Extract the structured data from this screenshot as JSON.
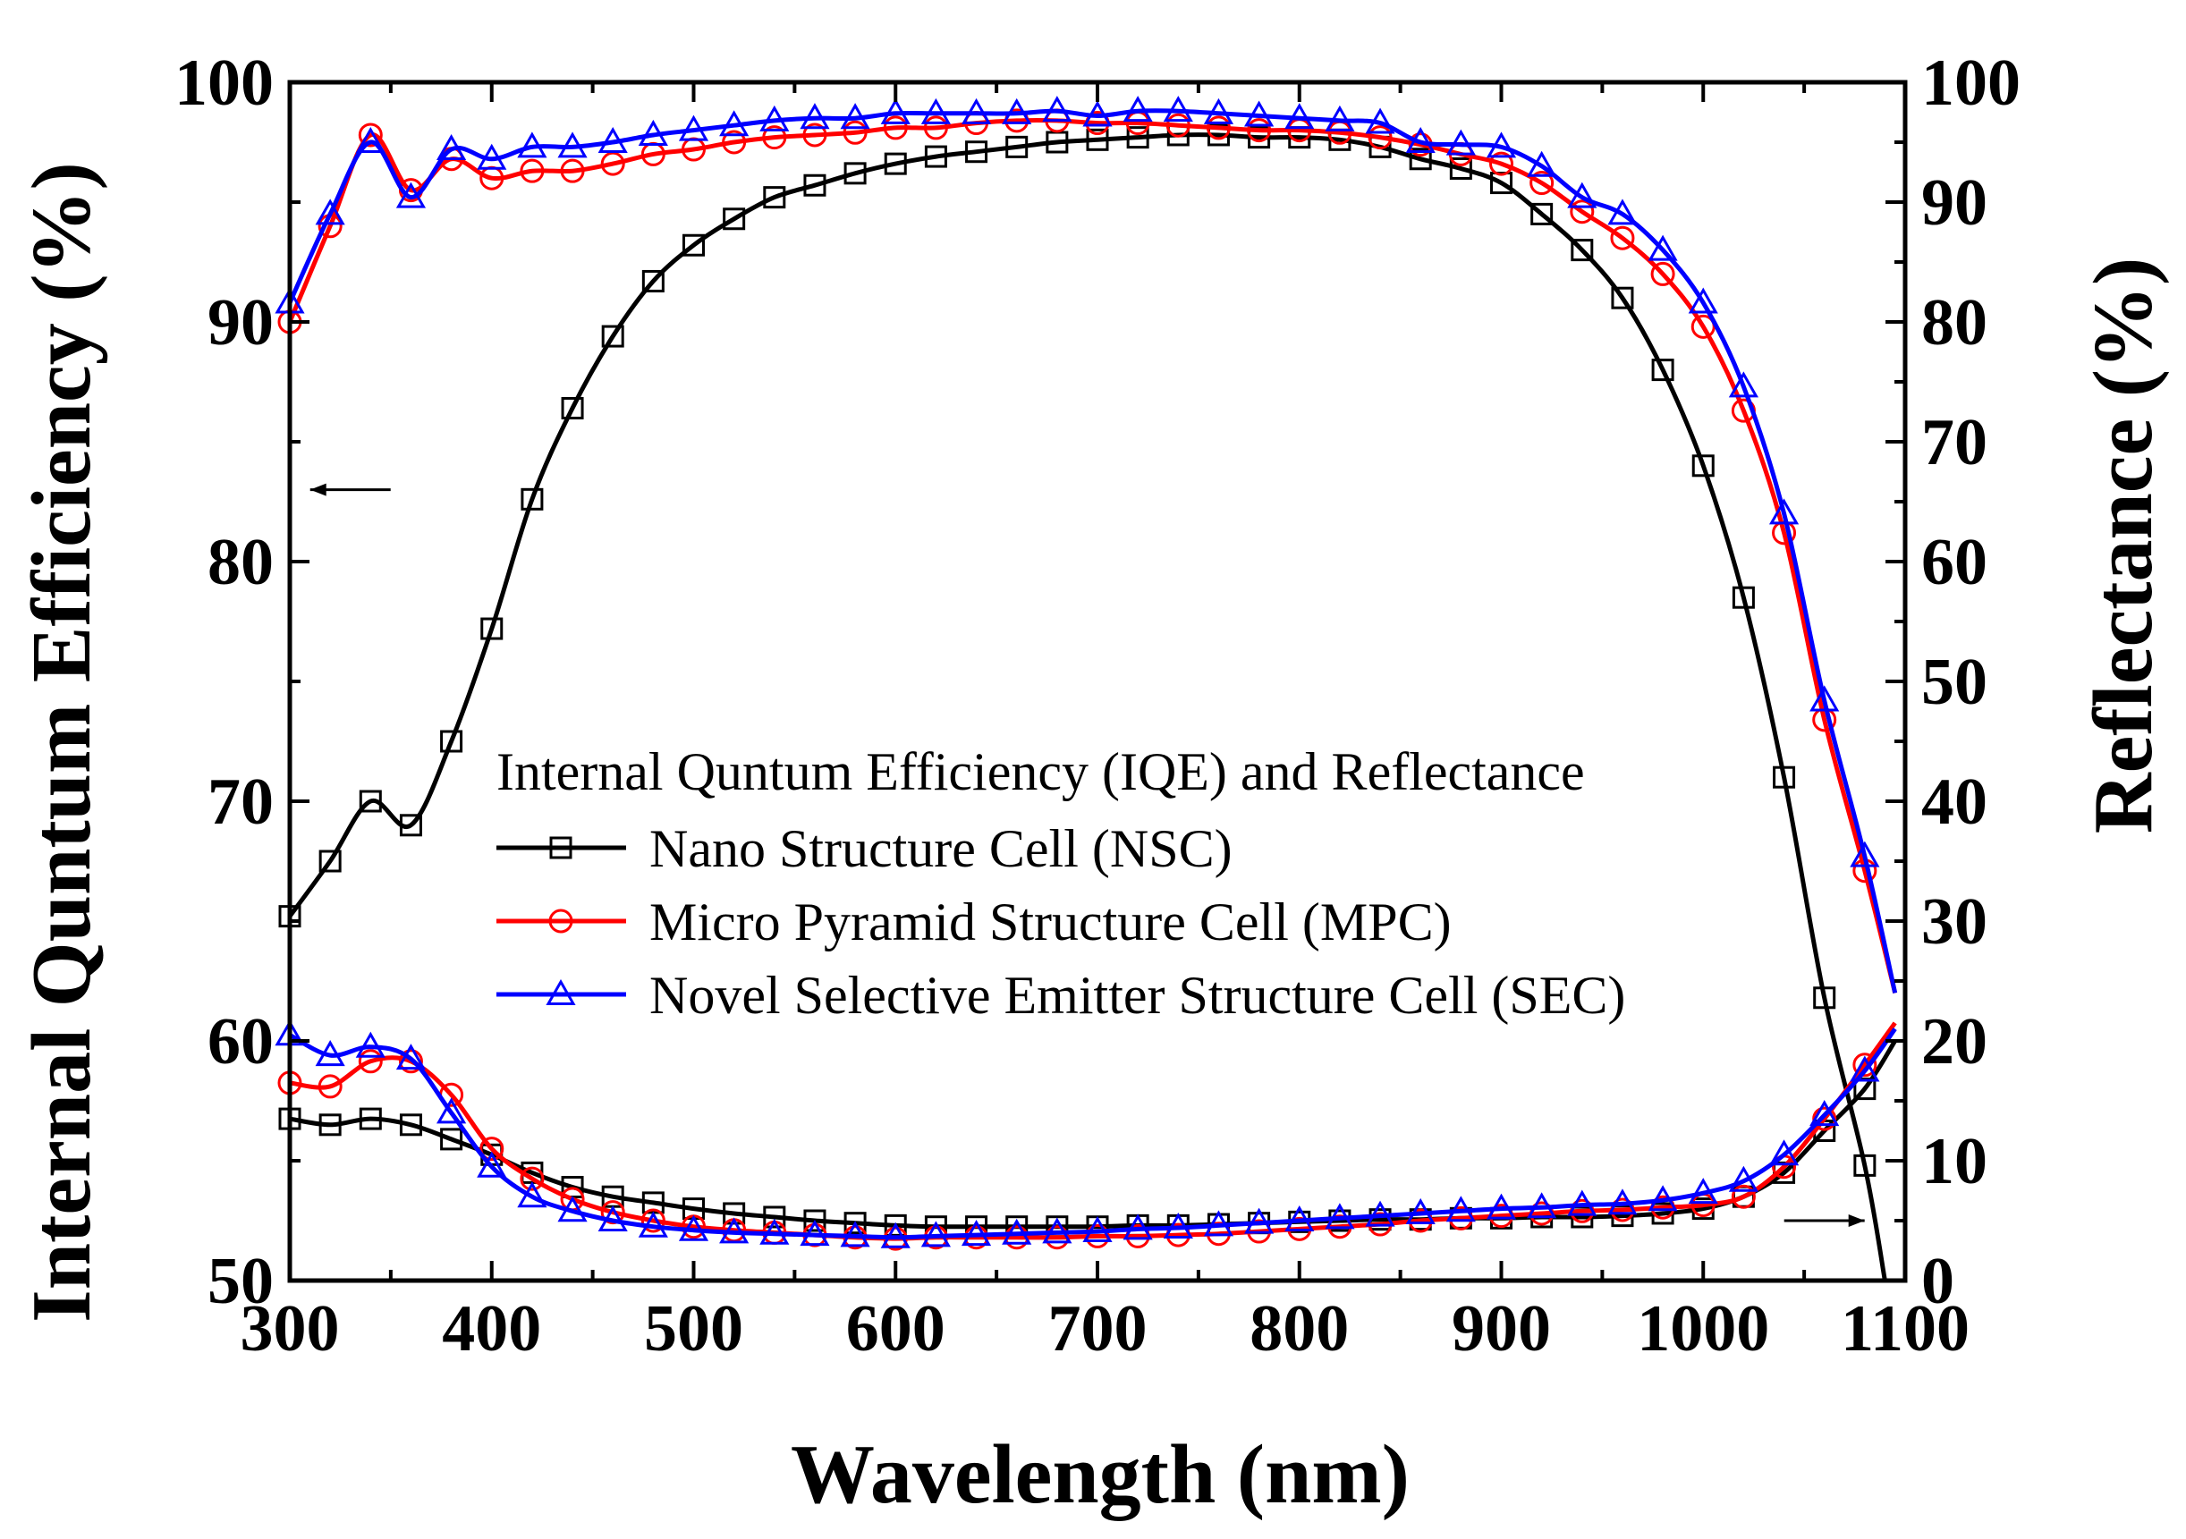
{
  "chart_data": {
    "type": "line",
    "title": "Internal Quntum Efficiency (IQE) and Reflectance",
    "xlabel": "Wavelength (nm)",
    "ylabel_left": "Internal Quntum Efficiency (%)",
    "ylabel_right": "Reflectance (%)",
    "xlim": [
      300,
      1100
    ],
    "ylim_left": [
      50,
      100
    ],
    "ylim_right": [
      0,
      100
    ],
    "x_ticks": [
      300,
      400,
      500,
      600,
      700,
      800,
      900,
      1000,
      1100
    ],
    "y_ticks_left": [
      50,
      60,
      70,
      80,
      90,
      100
    ],
    "y_ticks_right": [
      0,
      10,
      20,
      30,
      40,
      50,
      60,
      70,
      80,
      90,
      100
    ],
    "x_tick_labels": [
      "300",
      "400",
      "500",
      "600",
      "700",
      "800",
      "900",
      "1000",
      "1100"
    ],
    "y_tick_labels_left": [
      "50",
      "60",
      "70",
      "80",
      "90",
      "100"
    ],
    "y_tick_labels_right": [
      "0",
      "10",
      "20",
      "30",
      "40",
      "50",
      "60",
      "70",
      "80",
      "90",
      "100"
    ],
    "grid": false,
    "legend_position": "center",
    "annotations": [
      {
        "type": "arrow",
        "direction": "left",
        "axis": "IQE",
        "x": 330,
        "y": 83
      },
      {
        "type": "arrow",
        "direction": "right",
        "axis": "Reflectance",
        "x": 1060,
        "y": 5
      }
    ],
    "series": [
      {
        "name": "Nano Structure Cell (NSC)",
        "color": "#000000",
        "marker": "square",
        "axis": "IQE",
        "x": [
          300,
          320,
          340,
          360,
          380,
          400,
          420,
          440,
          460,
          480,
          500,
          520,
          540,
          560,
          580,
          600,
          620,
          640,
          660,
          680,
          700,
          720,
          740,
          760,
          780,
          800,
          820,
          840,
          860,
          880,
          900,
          920,
          940,
          960,
          980,
          1000,
          1020,
          1040,
          1060,
          1080,
          1090
        ],
        "values": [
          65.2,
          67.5,
          70.0,
          69.0,
          72.5,
          77.2,
          82.6,
          86.4,
          89.4,
          91.7,
          93.2,
          94.3,
          95.2,
          95.7,
          96.2,
          96.6,
          96.9,
          97.1,
          97.3,
          97.5,
          97.6,
          97.7,
          97.8,
          97.8,
          97.7,
          97.7,
          97.6,
          97.3,
          96.8,
          96.4,
          95.8,
          94.5,
          93.0,
          91.0,
          88.0,
          84.0,
          78.5,
          71.0,
          61.8,
          54.8,
          50.0
        ]
      },
      {
        "name": "Micro Pyramid Structure Cell (MPC)",
        "color": "#ff0000",
        "marker": "circle",
        "axis": "IQE",
        "x": [
          300,
          320,
          340,
          360,
          380,
          400,
          420,
          440,
          460,
          480,
          500,
          520,
          540,
          560,
          580,
          600,
          620,
          640,
          660,
          680,
          700,
          720,
          740,
          760,
          780,
          800,
          820,
          840,
          860,
          880,
          900,
          920,
          940,
          960,
          980,
          1000,
          1020,
          1040,
          1060,
          1080,
          1095
        ],
        "values": [
          90.0,
          94.0,
          97.8,
          95.5,
          96.8,
          96.0,
          96.3,
          96.3,
          96.6,
          97.0,
          97.2,
          97.5,
          97.7,
          97.8,
          97.9,
          98.1,
          98.1,
          98.3,
          98.4,
          98.4,
          98.3,
          98.3,
          98.2,
          98.1,
          98.0,
          98.0,
          97.9,
          97.7,
          97.4,
          97.0,
          96.6,
          95.8,
          94.6,
          93.5,
          92.0,
          89.8,
          86.3,
          81.2,
          73.4,
          67.1,
          62.0
        ]
      },
      {
        "name": "Novel Selective Emitter Structure Cell (SEC)",
        "color": "#0000ff",
        "marker": "triangle",
        "axis": "IQE",
        "x": [
          300,
          320,
          340,
          360,
          380,
          400,
          420,
          440,
          460,
          480,
          500,
          520,
          540,
          560,
          580,
          600,
          620,
          640,
          660,
          680,
          700,
          720,
          740,
          760,
          780,
          800,
          820,
          840,
          860,
          880,
          900,
          920,
          940,
          960,
          980,
          1000,
          1020,
          1040,
          1060,
          1080,
          1095
        ],
        "values": [
          90.8,
          94.5,
          97.5,
          95.2,
          97.2,
          96.8,
          97.3,
          97.3,
          97.5,
          97.8,
          98.0,
          98.2,
          98.4,
          98.5,
          98.5,
          98.7,
          98.7,
          98.7,
          98.7,
          98.8,
          98.6,
          98.8,
          98.8,
          98.7,
          98.6,
          98.5,
          98.4,
          98.3,
          97.5,
          97.4,
          97.3,
          96.5,
          95.2,
          94.5,
          93.0,
          90.8,
          87.3,
          82.0,
          74.2,
          67.7,
          62.0
        ]
      },
      {
        "name": "Nano Structure Cell (NSC)",
        "color": "#000000",
        "marker": "square",
        "axis": "Reflectance",
        "x": [
          300,
          320,
          340,
          360,
          380,
          400,
          420,
          440,
          460,
          480,
          500,
          520,
          540,
          560,
          580,
          600,
          620,
          640,
          660,
          680,
          700,
          720,
          740,
          760,
          780,
          800,
          820,
          840,
          860,
          880,
          900,
          920,
          940,
          960,
          980,
          1000,
          1020,
          1040,
          1060,
          1080,
          1095
        ],
        "values": [
          13.5,
          13.0,
          13.5,
          13.0,
          11.8,
          10.5,
          9.0,
          7.8,
          7.0,
          6.5,
          6.0,
          5.6,
          5.3,
          5.0,
          4.8,
          4.6,
          4.5,
          4.5,
          4.5,
          4.5,
          4.5,
          4.6,
          4.6,
          4.7,
          4.8,
          4.9,
          5.0,
          5.1,
          5.1,
          5.2,
          5.2,
          5.3,
          5.3,
          5.4,
          5.6,
          6.0,
          7.0,
          9.0,
          12.5,
          16.0,
          20.0
        ]
      },
      {
        "name": "Micro Pyramid Structure Cell (MPC)",
        "color": "#ff0000",
        "marker": "circle",
        "axis": "Reflectance",
        "x": [
          300,
          320,
          340,
          360,
          380,
          400,
          420,
          440,
          460,
          480,
          500,
          520,
          540,
          560,
          580,
          600,
          620,
          640,
          660,
          680,
          700,
          720,
          740,
          760,
          780,
          800,
          820,
          840,
          860,
          880,
          900,
          920,
          940,
          960,
          980,
          1000,
          1020,
          1040,
          1060,
          1080,
          1095
        ],
        "values": [
          16.5,
          16.2,
          18.3,
          18.3,
          15.5,
          11.0,
          8.5,
          6.8,
          5.7,
          5.0,
          4.5,
          4.2,
          4.0,
          3.8,
          3.6,
          3.5,
          3.6,
          3.6,
          3.6,
          3.6,
          3.7,
          3.7,
          3.8,
          3.9,
          4.1,
          4.3,
          4.5,
          4.7,
          5.0,
          5.2,
          5.4,
          5.6,
          5.8,
          5.9,
          6.1,
          6.3,
          7.0,
          9.5,
          13.5,
          18.0,
          21.5
        ]
      },
      {
        "name": "Novel Selective Emitter Structure Cell (SEC)",
        "color": "#0000ff",
        "marker": "triangle",
        "axis": "Reflectance",
        "x": [
          300,
          320,
          340,
          360,
          380,
          400,
          420,
          440,
          460,
          480,
          500,
          520,
          540,
          560,
          580,
          600,
          620,
          640,
          660,
          680,
          700,
          720,
          740,
          760,
          780,
          800,
          820,
          840,
          860,
          880,
          900,
          920,
          940,
          960,
          980,
          1000,
          1020,
          1040,
          1060,
          1080,
          1095
        ],
        "values": [
          20.5,
          18.8,
          19.5,
          18.5,
          14.0,
          9.5,
          7.0,
          5.8,
          5.0,
          4.5,
          4.2,
          4.0,
          3.9,
          3.8,
          3.7,
          3.6,
          3.7,
          3.8,
          3.9,
          4.0,
          4.1,
          4.3,
          4.4,
          4.6,
          4.8,
          5.0,
          5.2,
          5.4,
          5.6,
          5.8,
          6.0,
          6.1,
          6.3,
          6.4,
          6.7,
          7.3,
          8.3,
          10.5,
          13.8,
          17.5,
          21.0
        ]
      }
    ]
  }
}
